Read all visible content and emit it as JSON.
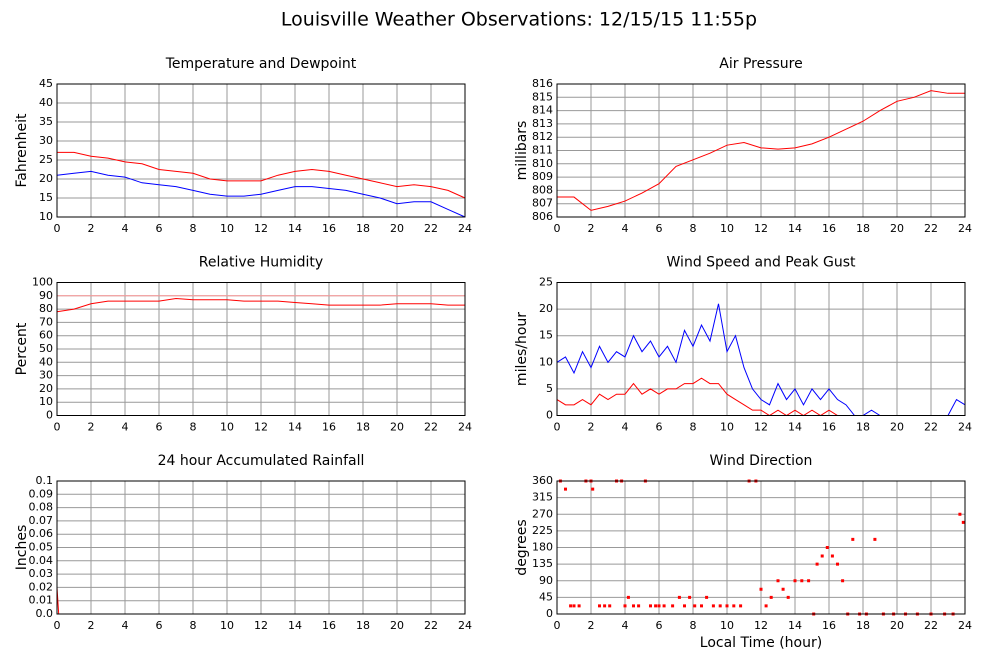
{
  "title": "Louisville Weather Observations: 12/15/15 11:55p",
  "chart_data": [
    {
      "type": "line",
      "title": "Temperature and Dewpoint",
      "ylabel": "Fahrenheit",
      "x": [
        0,
        1,
        2,
        3,
        4,
        5,
        6,
        7,
        8,
        9,
        10,
        11,
        12,
        13,
        14,
        15,
        16,
        17,
        18,
        19,
        20,
        21,
        22,
        23,
        24
      ],
      "series": [
        {
          "color": "#ff0000",
          "values": [
            27,
            27,
            26,
            25.5,
            24.5,
            24,
            22.5,
            22,
            21.5,
            20,
            19.5,
            19.5,
            19.5,
            21,
            22,
            22.5,
            22,
            21,
            20,
            19,
            18,
            18.5,
            18,
            17,
            15
          ]
        },
        {
          "color": "#0000ff",
          "values": [
            21,
            21.5,
            22,
            21,
            20.5,
            19,
            18.5,
            18,
            17,
            16,
            15.5,
            15.5,
            16,
            17,
            18,
            18,
            17.5,
            17,
            16,
            15,
            13.5,
            14,
            14,
            12,
            10
          ]
        }
      ],
      "xlim": [
        0,
        24
      ],
      "xticks": [
        0,
        2,
        4,
        6,
        8,
        10,
        12,
        14,
        16,
        18,
        20,
        22,
        24
      ],
      "ylim": [
        10,
        45
      ],
      "yticks": [
        10,
        15,
        20,
        25,
        30,
        35,
        40,
        45
      ],
      "grid": true
    },
    {
      "type": "line",
      "title": "Air Pressure",
      "ylabel": "millibars",
      "x": [
        0,
        1,
        2,
        3,
        4,
        5,
        6,
        7,
        8,
        9,
        10,
        11,
        12,
        13,
        14,
        15,
        16,
        17,
        18,
        19,
        20,
        21,
        22,
        23,
        24
      ],
      "series": [
        {
          "color": "#ff0000",
          "values": [
            807.5,
            807.5,
            806.5,
            806.8,
            807.2,
            807.8,
            808.5,
            809.8,
            810.3,
            810.8,
            811.4,
            811.6,
            811.2,
            811.1,
            811.2,
            811.5,
            812,
            812.6,
            813.2,
            814,
            814.7,
            815,
            815.5,
            815.3,
            815.3
          ]
        }
      ],
      "xlim": [
        0,
        24
      ],
      "xticks": [
        0,
        2,
        4,
        6,
        8,
        10,
        12,
        14,
        16,
        18,
        20,
        22,
        24
      ],
      "ylim": [
        806,
        816
      ],
      "yticks": [
        806,
        807,
        808,
        809,
        810,
        811,
        812,
        813,
        814,
        815,
        816
      ],
      "grid": true
    },
    {
      "type": "line",
      "title": "Relative Humidity",
      "ylabel": "Percent",
      "x": [
        0,
        1,
        2,
        3,
        4,
        5,
        6,
        7,
        8,
        9,
        10,
        11,
        12,
        13,
        14,
        15,
        16,
        17,
        18,
        19,
        20,
        21,
        22,
        23,
        24
      ],
      "series": [
        {
          "color": "#ff0000",
          "values": [
            78,
            80,
            84,
            86,
            86,
            86,
            86,
            88,
            87,
            87,
            87,
            86,
            86,
            86,
            85,
            84,
            83,
            83,
            83,
            83,
            84,
            84,
            84,
            83,
            83
          ]
        }
      ],
      "hline": {
        "value": 90,
        "color": "#ff9999"
      },
      "xlim": [
        0,
        24
      ],
      "xticks": [
        0,
        2,
        4,
        6,
        8,
        10,
        12,
        14,
        16,
        18,
        20,
        22,
        24
      ],
      "ylim": [
        0,
        100
      ],
      "yticks": [
        0,
        10,
        20,
        30,
        40,
        50,
        60,
        70,
        80,
        90,
        100
      ],
      "grid": true
    },
    {
      "type": "line",
      "title": "Wind Speed and Peak Gust",
      "ylabel": "miles/hour",
      "x": [
        0,
        0.5,
        1,
        1.5,
        2,
        2.5,
        3,
        3.5,
        4,
        4.5,
        5,
        5.5,
        6,
        6.5,
        7,
        7.5,
        8,
        8.5,
        9,
        9.5,
        10,
        10.5,
        11,
        11.5,
        12,
        12.5,
        13,
        13.5,
        14,
        14.5,
        15,
        15.5,
        16,
        16.5,
        17,
        17.5,
        18,
        18.5,
        19,
        19.5,
        20,
        20.5,
        21,
        21.5,
        22,
        22.5,
        23,
        23.5,
        24
      ],
      "series": [
        {
          "color": "#0000ff",
          "values": [
            10,
            11,
            8,
            12,
            9,
            13,
            10,
            12,
            11,
            15,
            12,
            14,
            11,
            13,
            10,
            16,
            13,
            17,
            14,
            21,
            12,
            15,
            9,
            5,
            3,
            2,
            6,
            3,
            5,
            2,
            5,
            3,
            5,
            3,
            2,
            0,
            0,
            1,
            0,
            0,
            0,
            0,
            0,
            0,
            0,
            0,
            0,
            3,
            2
          ]
        },
        {
          "color": "#ff0000",
          "values": [
            3,
            2,
            2,
            3,
            2,
            4,
            3,
            4,
            4,
            6,
            4,
            5,
            4,
            5,
            5,
            6,
            6,
            7,
            6,
            6,
            4,
            3,
            2,
            1,
            1,
            0,
            1,
            0,
            1,
            0,
            1,
            0,
            1,
            0,
            0,
            0,
            0,
            0,
            0,
            0,
            0,
            0,
            0,
            0,
            0,
            0,
            0,
            0,
            0
          ]
        }
      ],
      "xlim": [
        0,
        24
      ],
      "xticks": [
        0,
        2,
        4,
        6,
        8,
        10,
        12,
        14,
        16,
        18,
        20,
        22,
        24
      ],
      "ylim": [
        0,
        25
      ],
      "yticks": [
        0,
        5,
        10,
        15,
        20,
        25
      ],
      "grid": true
    },
    {
      "type": "line",
      "title": "24 hour Accumulated Rainfall",
      "ylabel": "Inches",
      "x": [
        0,
        0.1,
        24
      ],
      "series": [
        {
          "color": "#ff0000",
          "values": [
            0.02,
            0,
            0
          ]
        }
      ],
      "xlim": [
        0,
        24
      ],
      "xticks": [
        0,
        2,
        4,
        6,
        8,
        10,
        12,
        14,
        16,
        18,
        20,
        22,
        24
      ],
      "ylim": [
        0,
        0.1
      ],
      "yticks": [
        {
          "value": 0,
          "label": "0.0"
        },
        0.01,
        0.02,
        0.03,
        0.04,
        0.05,
        0.06,
        0.07,
        0.08,
        0.09,
        0.1
      ],
      "grid": true
    },
    {
      "type": "scatter",
      "title": "Wind Direction",
      "ylabel": "degrees",
      "xlabel": "Local Time (hour)",
      "x": [
        0.2,
        0.5,
        0.8,
        1.0,
        1.3,
        1.7,
        2.0,
        2.1,
        2.5,
        2.8,
        3.1,
        3.5,
        3.8,
        4.0,
        4.2,
        4.5,
        4.8,
        5.2,
        5.5,
        5.8,
        6.0,
        6.3,
        6.8,
        7.2,
        7.5,
        7.8,
        8.1,
        8.5,
        8.8,
        9.2,
        9.6,
        10.0,
        10.4,
        10.8,
        11.3,
        11.7,
        12.0,
        12.3,
        12.6,
        13.0,
        13.3,
        13.6,
        14.0,
        14.4,
        14.8,
        15.1,
        15.3,
        15.6,
        15.9,
        16.2,
        16.5,
        16.8,
        17.1,
        17.4,
        17.8,
        18.2,
        18.7,
        19.2,
        19.8,
        20.5,
        21.2,
        22.0,
        22.8,
        23.3,
        23.7,
        23.9
      ],
      "series": [
        {
          "color": "#ff0000",
          "values": [
            360,
            338,
            22,
            22,
            22,
            360,
            360,
            338,
            22,
            22,
            22,
            360,
            360,
            22,
            45,
            22,
            22,
            360,
            22,
            22,
            22,
            22,
            22,
            45,
            22,
            45,
            22,
            22,
            45,
            22,
            22,
            22,
            22,
            22,
            360,
            360,
            67,
            22,
            45,
            90,
            67,
            45,
            90,
            90,
            90,
            0,
            135,
            157,
            180,
            157,
            135,
            90,
            0,
            202,
            0,
            0,
            202,
            0,
            0,
            0,
            0,
            0,
            0,
            0,
            270,
            248
          ]
        }
      ],
      "xlim": [
        0,
        24
      ],
      "xticks": [
        0,
        2,
        4,
        6,
        8,
        10,
        12,
        14,
        16,
        18,
        20,
        22,
        24
      ],
      "ylim": [
        0,
        360
      ],
      "yticks": [
        0,
        45,
        90,
        135,
        180,
        225,
        270,
        315,
        360
      ],
      "grid": true
    }
  ]
}
